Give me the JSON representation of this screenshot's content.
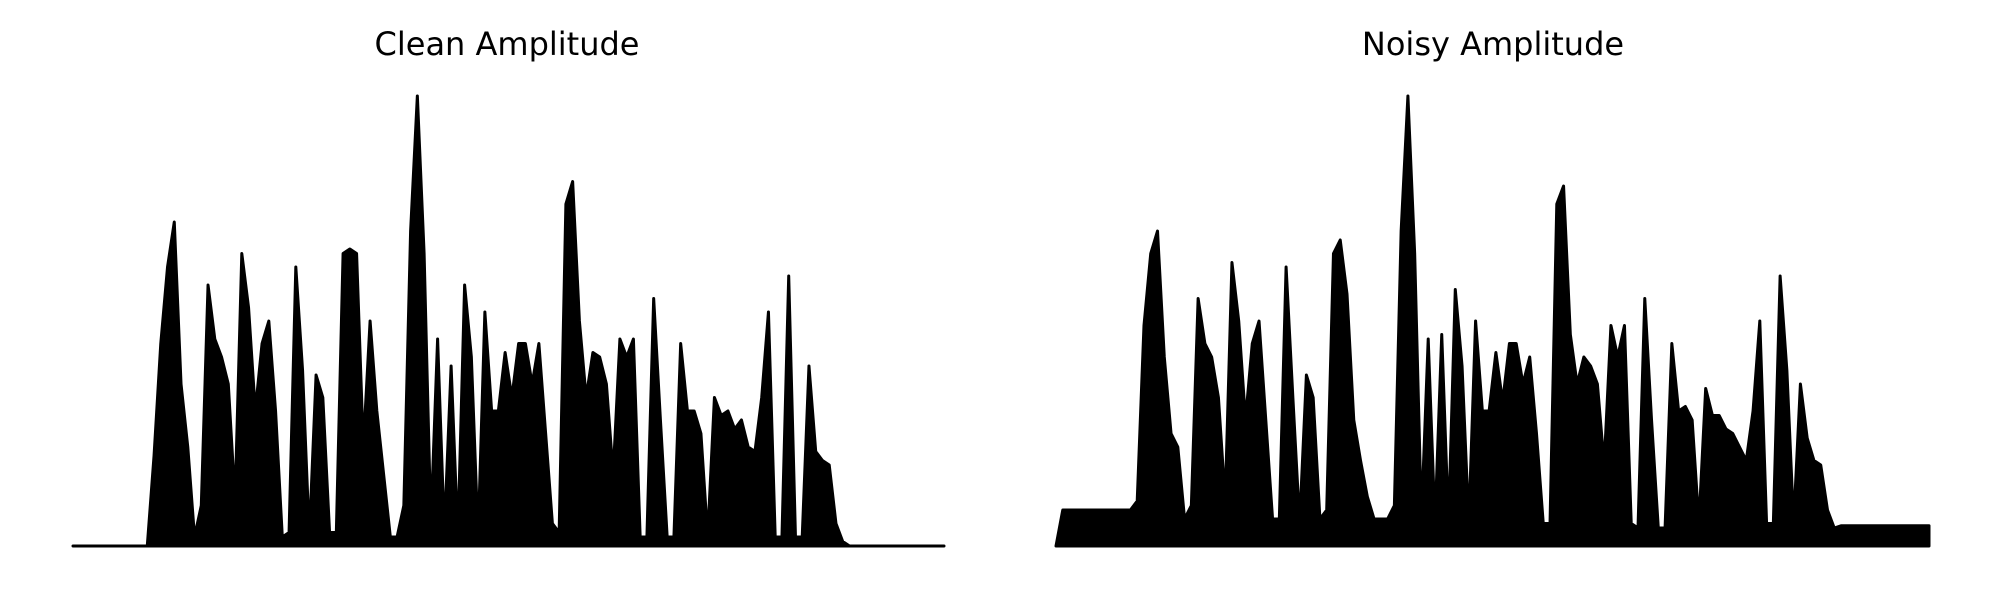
{
  "chart_data": [
    {
      "type": "area",
      "title": "Clean Amplitude",
      "color": "#000000",
      "ylim": [
        0,
        1
      ],
      "values": [
        0,
        0,
        0,
        0,
        0,
        0,
        0,
        0,
        0,
        0,
        0,
        0,
        0.2,
        0.45,
        0.62,
        0.72,
        0.36,
        0.22,
        0.02,
        0.09,
        0.58,
        0.46,
        0.42,
        0.36,
        0.1,
        0.65,
        0.53,
        0.3,
        0.45,
        0.5,
        0.3,
        0.02,
        0.03,
        0.62,
        0.39,
        0.02,
        0.38,
        0.33,
        0.03,
        0.03,
        0.65,
        0.66,
        0.65,
        0.22,
        0.5,
        0.3,
        0.16,
        0.02,
        0.02,
        0.09,
        0.7,
        1.0,
        0.65,
        0.05,
        0.46,
        0.03,
        0.4,
        0.02,
        0.58,
        0.42,
        0.02,
        0.52,
        0.3,
        0.3,
        0.43,
        0.33,
        0.45,
        0.45,
        0.36,
        0.45,
        0.25,
        0.05,
        0.03,
        0.76,
        0.81,
        0.5,
        0.33,
        0.43,
        0.42,
        0.36,
        0.16,
        0.46,
        0.42,
        0.46,
        0.02,
        0.02,
        0.55,
        0.28,
        0.02,
        0.02,
        0.45,
        0.3,
        0.3,
        0.25,
        0.02,
        0.33,
        0.29,
        0.3,
        0.26,
        0.28,
        0.22,
        0.21,
        0.33,
        0.52,
        0.02,
        0.02,
        0.6,
        0.02,
        0.02,
        0.4,
        0.21,
        0.19,
        0.18,
        0.05,
        0.01,
        0,
        0,
        0,
        0,
        0,
        0,
        0,
        0,
        0,
        0,
        0,
        0,
        0,
        0,
        0
      ]
    },
    {
      "type": "area",
      "title": "Noisy Amplitude",
      "color": "#000000",
      "ylim": [
        0,
        1
      ],
      "values": [
        0,
        0.08,
        0.08,
        0.08,
        0.08,
        0.08,
        0.08,
        0.08,
        0.08,
        0.08,
        0.08,
        0.08,
        0.1,
        0.49,
        0.65,
        0.7,
        0.42,
        0.25,
        0.22,
        0.06,
        0.09,
        0.55,
        0.45,
        0.42,
        0.33,
        0.1,
        0.63,
        0.5,
        0.28,
        0.45,
        0.5,
        0.28,
        0.06,
        0.06,
        0.62,
        0.33,
        0.05,
        0.38,
        0.33,
        0.06,
        0.08,
        0.65,
        0.68,
        0.56,
        0.28,
        0.19,
        0.11,
        0.06,
        0.06,
        0.06,
        0.09,
        0.7,
        1.0,
        0.65,
        0.06,
        0.46,
        0.05,
        0.47,
        0.05,
        0.57,
        0.4,
        0.05,
        0.5,
        0.3,
        0.3,
        0.43,
        0.32,
        0.45,
        0.45,
        0.36,
        0.42,
        0.25,
        0.05,
        0.05,
        0.76,
        0.8,
        0.47,
        0.36,
        0.42,
        0.4,
        0.36,
        0.18,
        0.49,
        0.42,
        0.49,
        0.05,
        0.04,
        0.55,
        0.28,
        0.04,
        0.04,
        0.45,
        0.3,
        0.31,
        0.28,
        0.05,
        0.35,
        0.29,
        0.29,
        0.26,
        0.25,
        0.22,
        0.19,
        0.3,
        0.5,
        0.05,
        0.05,
        0.6,
        0.39,
        0.05,
        0.36,
        0.24,
        0.19,
        0.18,
        0.08,
        0.04,
        0.045,
        0.045,
        0.045,
        0.045,
        0.045,
        0.045,
        0.045,
        0.045,
        0.045,
        0.045,
        0.045,
        0.045,
        0.045,
        0.045
      ]
    }
  ]
}
